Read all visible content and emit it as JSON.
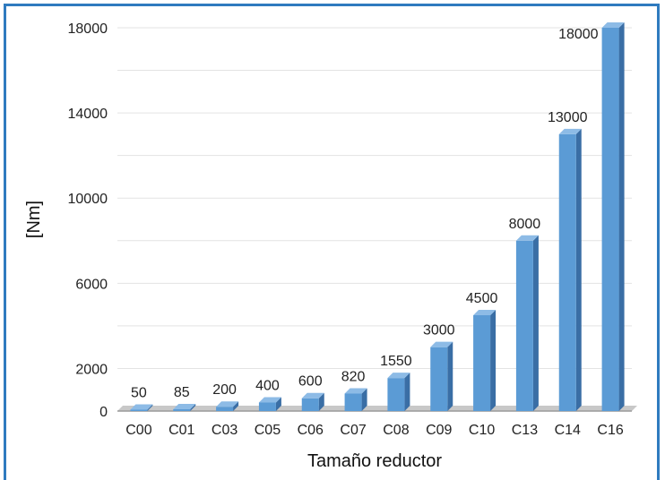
{
  "chart_data": {
    "type": "bar",
    "categories": [
      "C00",
      "C01",
      "C03",
      "C05",
      "C06",
      "C07",
      "C08",
      "C09",
      "C10",
      "C13",
      "C14",
      "C16"
    ],
    "values": [
      50,
      85,
      200,
      400,
      600,
      820,
      1550,
      3000,
      4500,
      8000,
      13000,
      18000
    ],
    "data_labels": [
      "50",
      "85",
      "200",
      "400",
      "600",
      "820",
      "1550",
      "3000",
      "4500",
      "8000",
      "13000",
      "18000"
    ],
    "xlabel": "Tamaño reductor",
    "ylabel": "[Nm]",
    "ylim": [
      0,
      18000
    ],
    "yticks": [
      0,
      2000,
      6000,
      10000,
      14000,
      18000
    ],
    "grid": true,
    "bar_color": "#5b9bd5",
    "bar_side_color": "#3a6ea5",
    "bar_top_color": "#8dbbe6",
    "frame_color": "#2f7bbf"
  }
}
